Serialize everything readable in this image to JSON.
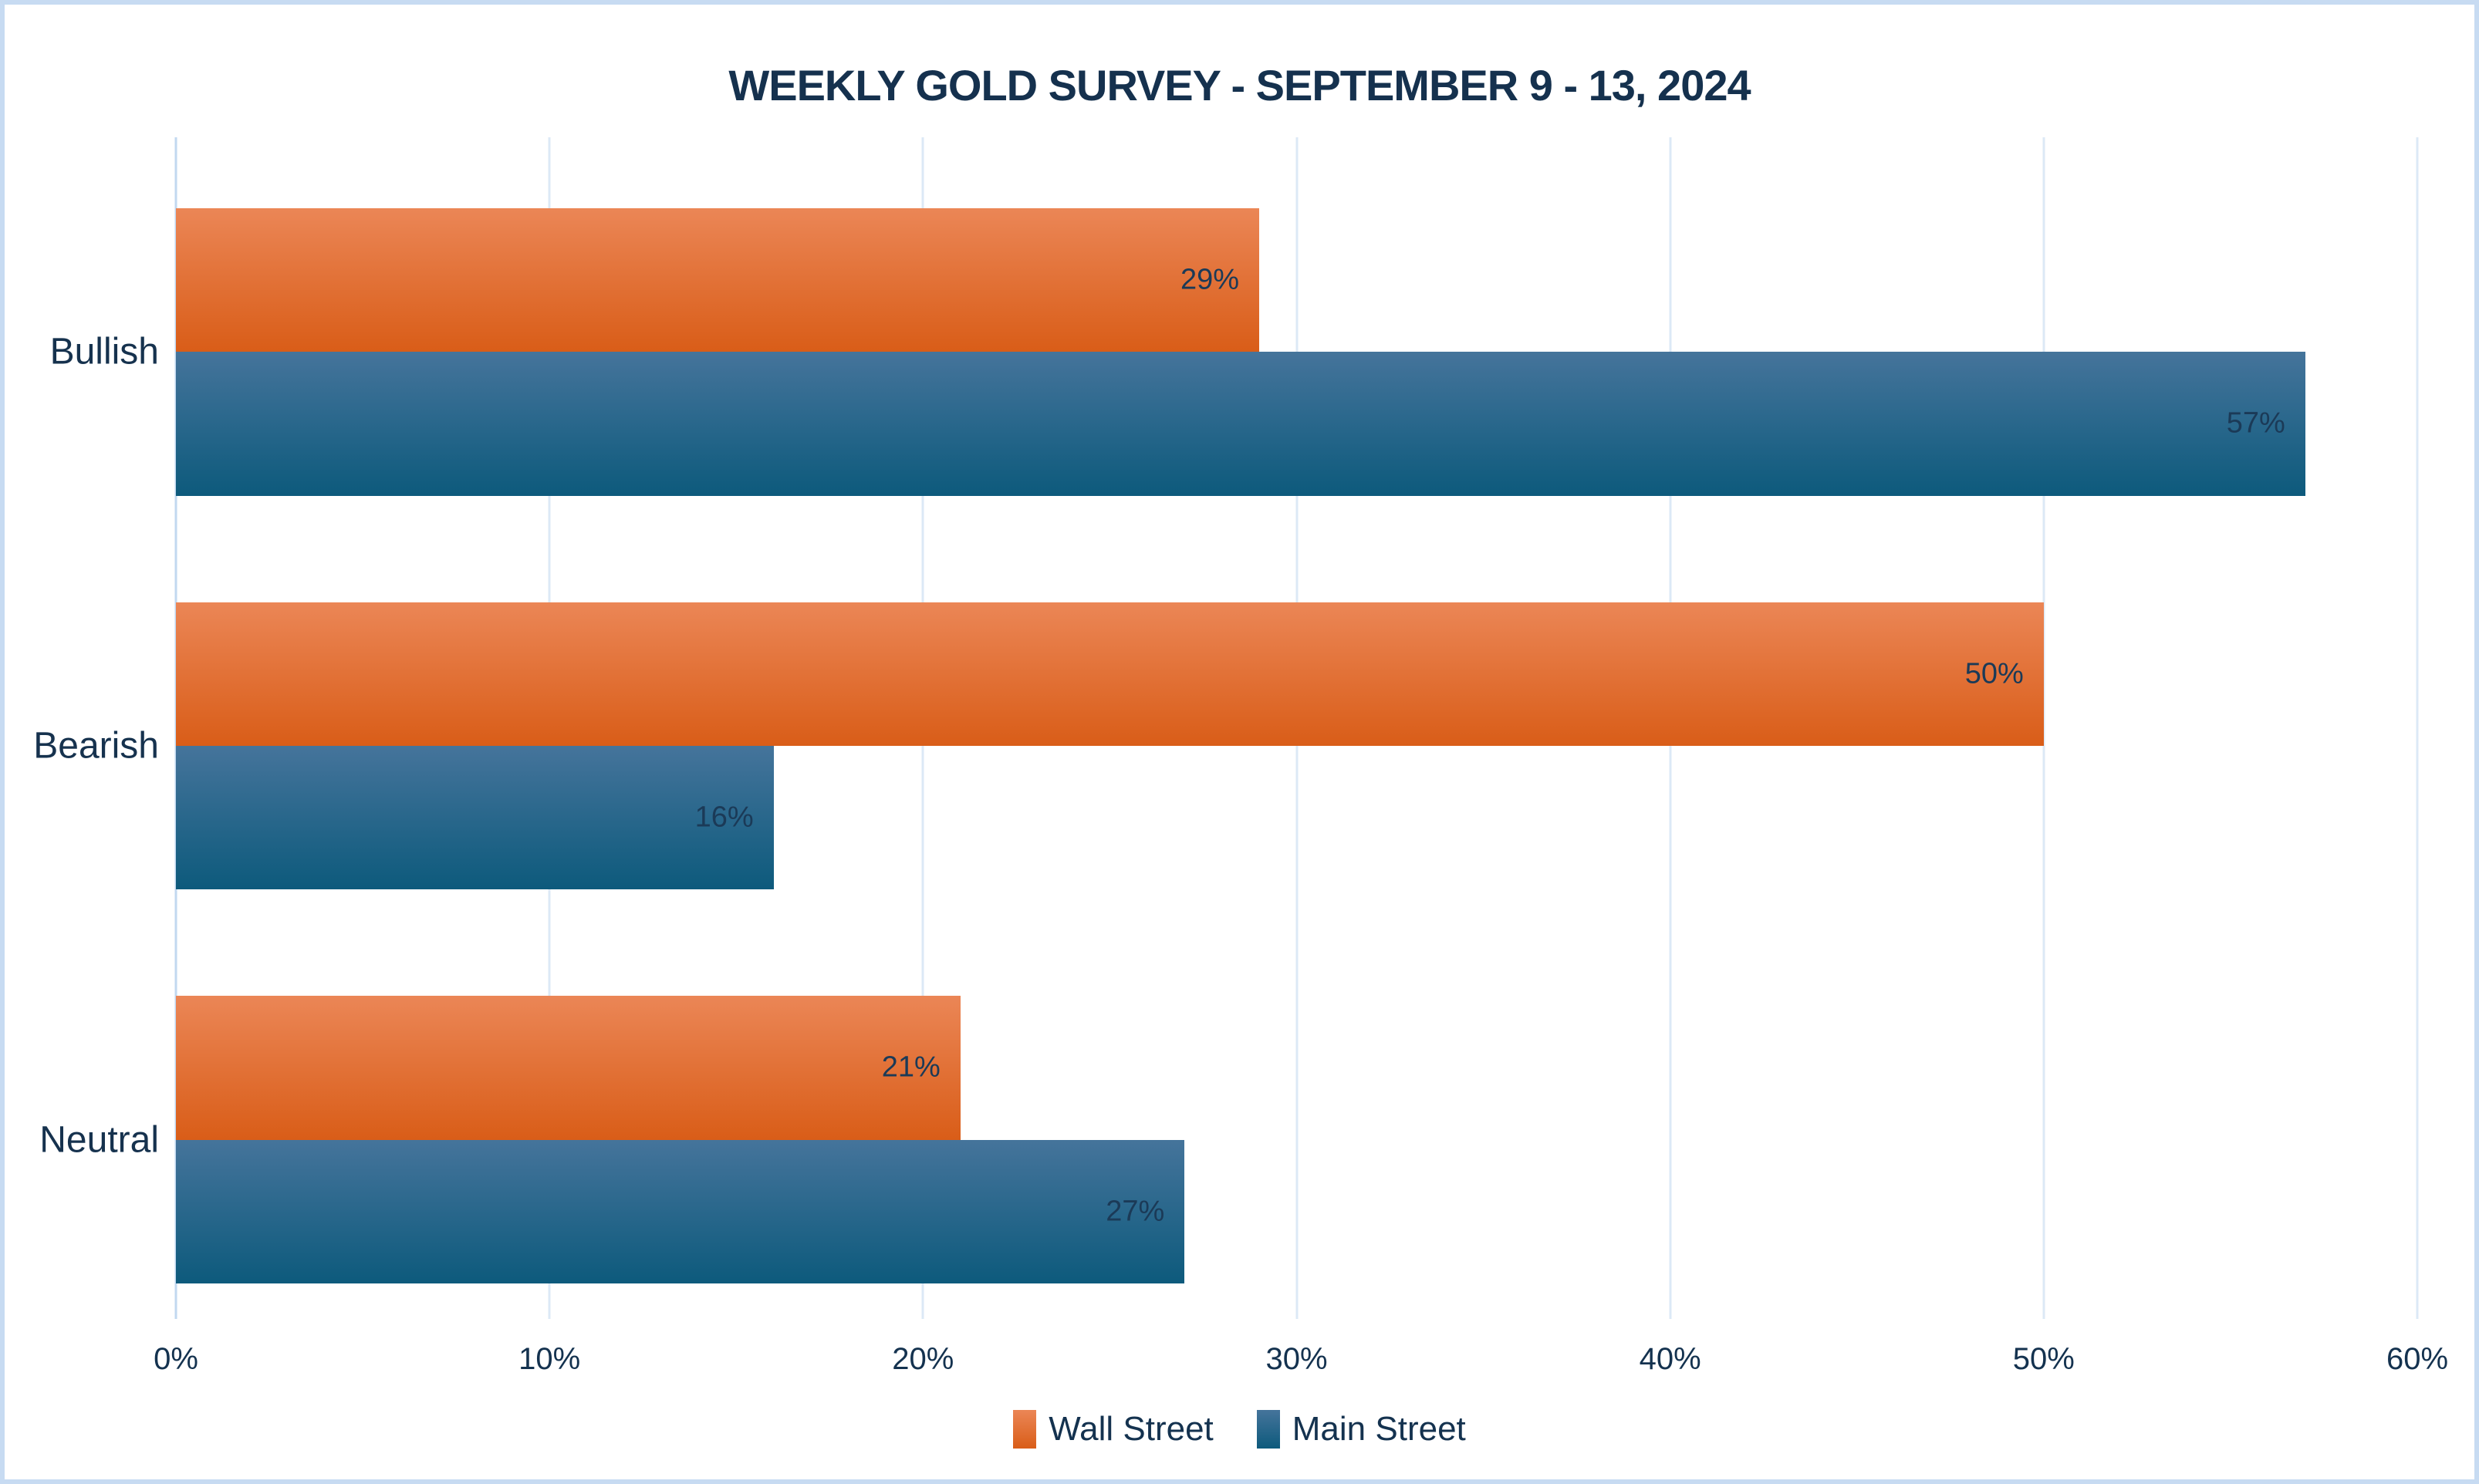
{
  "chart_data": {
    "type": "bar",
    "orientation": "horizontal",
    "title": "WEEKLY GOLD SURVEY - SEPTEMBER 9 - 13, 2024",
    "categories": [
      "Bullish",
      "Bearish",
      "Neutral"
    ],
    "series": [
      {
        "name": "Wall Street",
        "values": [
          29,
          50,
          21
        ],
        "color_top": "#eb8656",
        "color_bottom": "#d95d18"
      },
      {
        "name": "Main Street",
        "values": [
          57,
          16,
          27
        ],
        "color_top": "#45749b",
        "color_bottom": "#0d5a7c"
      }
    ],
    "value_suffix": "%",
    "xlabel": "",
    "ylabel": "",
    "xlim": [
      0,
      60
    ],
    "x_ticks": [
      "0%",
      "10%",
      "20%",
      "30%",
      "40%",
      "50%",
      "60%"
    ],
    "grid": true,
    "legend_position": "bottom"
  },
  "colors": {
    "title_text": "#15314e",
    "label_text": "#16324e",
    "value_text": "#1b3a57",
    "gridline": "#dce9f6",
    "axis_line": "#c2d8f0",
    "frame_border": "#c7dbf2",
    "background": "#ffffff"
  }
}
